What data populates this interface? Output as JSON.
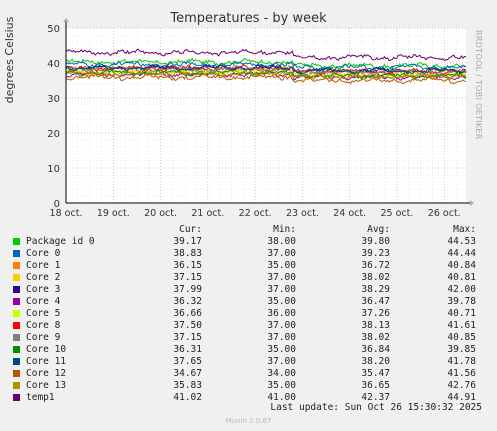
{
  "chart_data": {
    "type": "line",
    "title": "Temperatures - by week",
    "ylabel": "degrees Celsius",
    "ylim": [
      0,
      50
    ],
    "yticks": [
      0,
      10,
      20,
      30,
      40,
      50
    ],
    "xlim": [
      0,
      8.46
    ],
    "xticks": [
      {
        "label": "18 oct.",
        "x": 0
      },
      {
        "label": "19 oct.",
        "x": 1
      },
      {
        "label": "20 oct.",
        "x": 2
      },
      {
        "label": "21 oct.",
        "x": 3
      },
      {
        "label": "22 oct.",
        "x": 4
      },
      {
        "label": "23 oct.",
        "x": 5
      },
      {
        "label": "24 oct.",
        "x": 6
      },
      {
        "label": "25 oct.",
        "x": 7
      },
      {
        "label": "26 oct.",
        "x": 8
      }
    ],
    "grid": true,
    "legend_position": "bottom",
    "columns": [
      "Cur:",
      "Min:",
      "Avg:",
      "Max:"
    ],
    "series": [
      {
        "name": "Package id 0",
        "color": "#00cc00",
        "cur": "39.17",
        "min": "38.00",
        "avg": "39.80",
        "max": "44.53",
        "level_before": 40.3,
        "level_after": 39.2
      },
      {
        "name": "Core 0",
        "color": "#0066b3",
        "cur": "38.83",
        "min": "37.00",
        "avg": "39.23",
        "max": "44.44",
        "level_before": 39.6,
        "level_after": 38.8
      },
      {
        "name": "Core 1",
        "color": "#ff8000",
        "cur": "36.15",
        "min": "35.00",
        "avg": "36.72",
        "max": "40.84",
        "level_before": 37.2,
        "level_after": 36.2
      },
      {
        "name": "Core 2",
        "color": "#ffcc00",
        "cur": "37.15",
        "min": "37.00",
        "avg": "38.02",
        "max": "40.81",
        "level_before": 38.4,
        "level_after": 37.4
      },
      {
        "name": "Core 3",
        "color": "#330099",
        "cur": "37.99",
        "min": "37.00",
        "avg": "38.29",
        "max": "42.00",
        "level_before": 38.6,
        "level_after": 37.9
      },
      {
        "name": "Core 4",
        "color": "#990099",
        "cur": "36.32",
        "min": "35.00",
        "avg": "36.47",
        "max": "39.78",
        "level_before": 36.8,
        "level_after": 36.1
      },
      {
        "name": "Core 5",
        "color": "#ccff00",
        "cur": "36.66",
        "min": "36.00",
        "avg": "37.26",
        "max": "40.71",
        "level_before": 37.6,
        "level_after": 36.8
      },
      {
        "name": "Core 8",
        "color": "#ff0000",
        "cur": "37.50",
        "min": "37.00",
        "avg": "38.13",
        "max": "41.61",
        "level_before": 38.5,
        "level_after": 37.6
      },
      {
        "name": "Core 9",
        "color": "#808080",
        "cur": "37.15",
        "min": "37.00",
        "avg": "38.02",
        "max": "40.85",
        "level_before": 38.3,
        "level_after": 37.5
      },
      {
        "name": "Core 10",
        "color": "#008f00",
        "cur": "36.31",
        "min": "35.00",
        "avg": "36.84",
        "max": "39.85",
        "level_before": 37.2,
        "level_after": 36.4
      },
      {
        "name": "Core 11",
        "color": "#00487d",
        "cur": "37.65",
        "min": "37.00",
        "avg": "38.20",
        "max": "41.78",
        "level_before": 38.6,
        "level_after": 37.7
      },
      {
        "name": "Core 12",
        "color": "#b35a00",
        "cur": "34.67",
        "min": "34.00",
        "avg": "35.47",
        "max": "41.56",
        "level_before": 35.9,
        "level_after": 35.0
      },
      {
        "name": "Core 13",
        "color": "#b38f00",
        "cur": "35.83",
        "min": "35.00",
        "avg": "36.65",
        "max": "42.76",
        "level_before": 37.0,
        "level_after": 36.2
      },
      {
        "name": "temp1",
        "color": "#6b006b",
        "cur": "41.02",
        "min": "41.00",
        "avg": "42.37",
        "max": "44.91",
        "level_before": 43.0,
        "level_after": 41.6
      }
    ],
    "step_at_x": 4.8
  },
  "vendor_text": "RRDTOOL / TOBI OETIKER",
  "last_update": "Last update: Sun Oct 26 15:30:32 2025",
  "footer": "Munin 2.0.67",
  "colors": {
    "background": "#f0f0f0",
    "plot_bg": "#ffffff",
    "grid_major": "#e8a0a0",
    "grid_minor": "#dddddd",
    "axis": "#000000"
  }
}
